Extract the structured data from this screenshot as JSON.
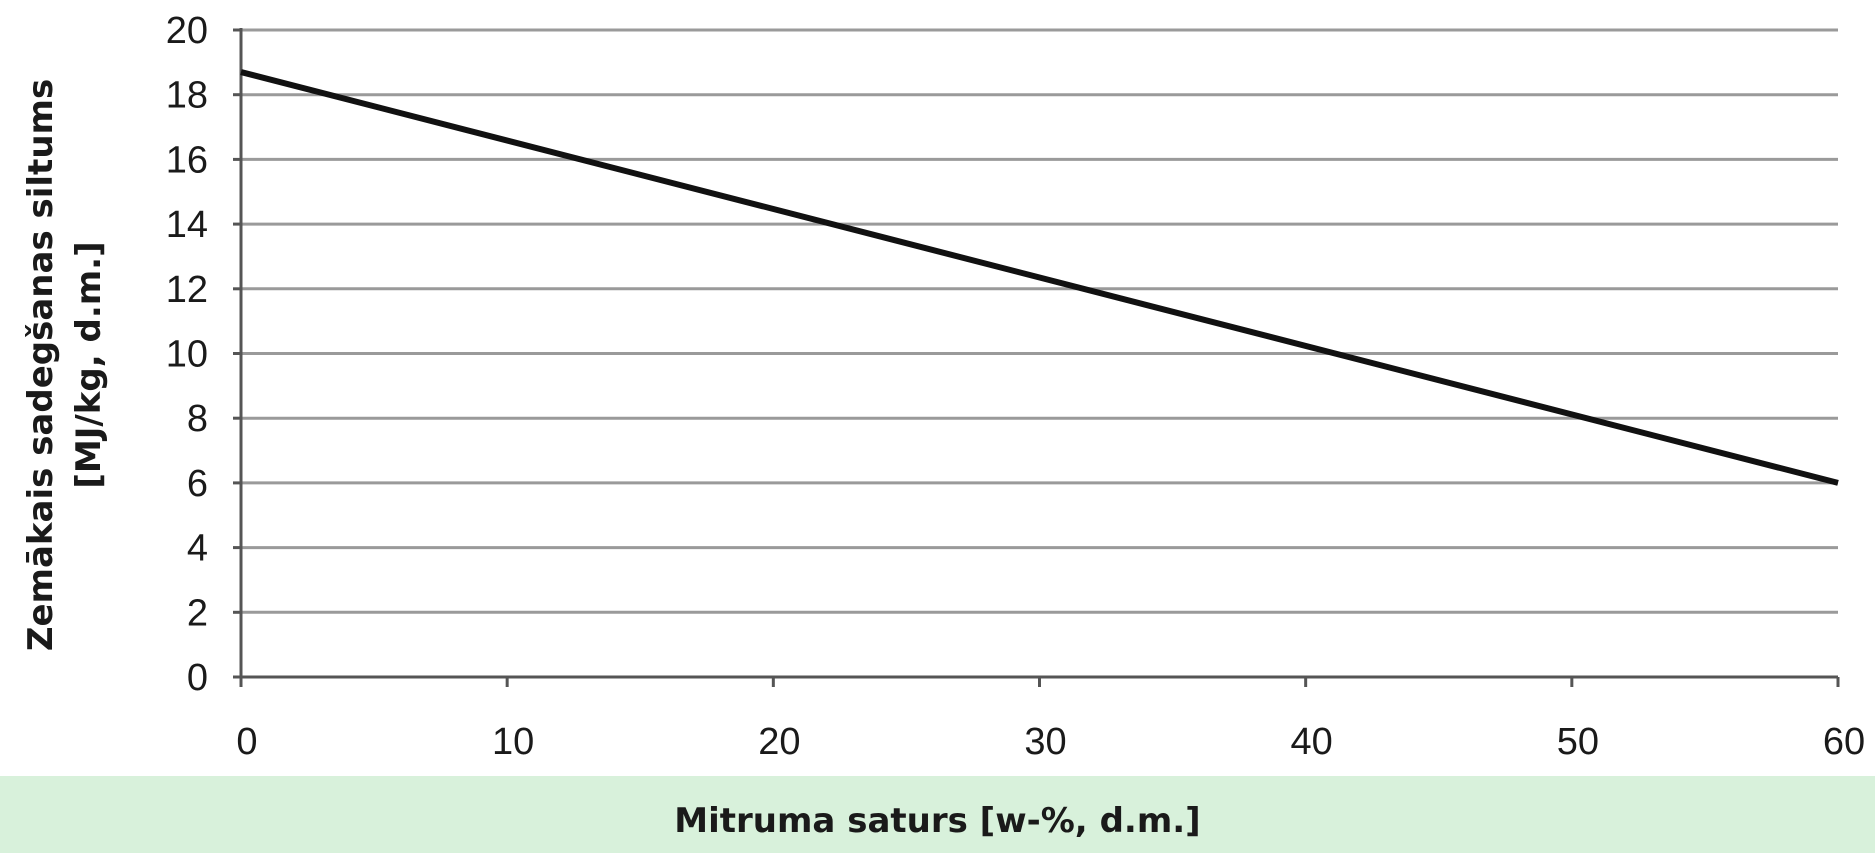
{
  "chart_data": {
    "type": "line",
    "x": [
      0,
      60
    ],
    "series": [
      {
        "values": [
          18.7,
          6.0
        ]
      }
    ],
    "xlabel": "Mitruma saturs [w-%, d.m.]",
    "ylabel_lines": [
      "Zemākais sadegšanas siltums",
      "[MJ/kg, d.m.]"
    ],
    "xlim": [
      0,
      60
    ],
    "ylim": [
      0,
      20
    ],
    "x_ticks": [
      "0",
      "10",
      "20",
      "30",
      "40",
      "50",
      "60"
    ],
    "y_ticks": [
      "0",
      "2",
      "4",
      "6",
      "8",
      "10",
      "12",
      "14",
      "16",
      "18",
      "20"
    ],
    "grid": "horizontal",
    "colors": {
      "line": "#111111",
      "grid": "#9a9a9a",
      "axis": "#555555",
      "band": "#d8f1db"
    }
  }
}
